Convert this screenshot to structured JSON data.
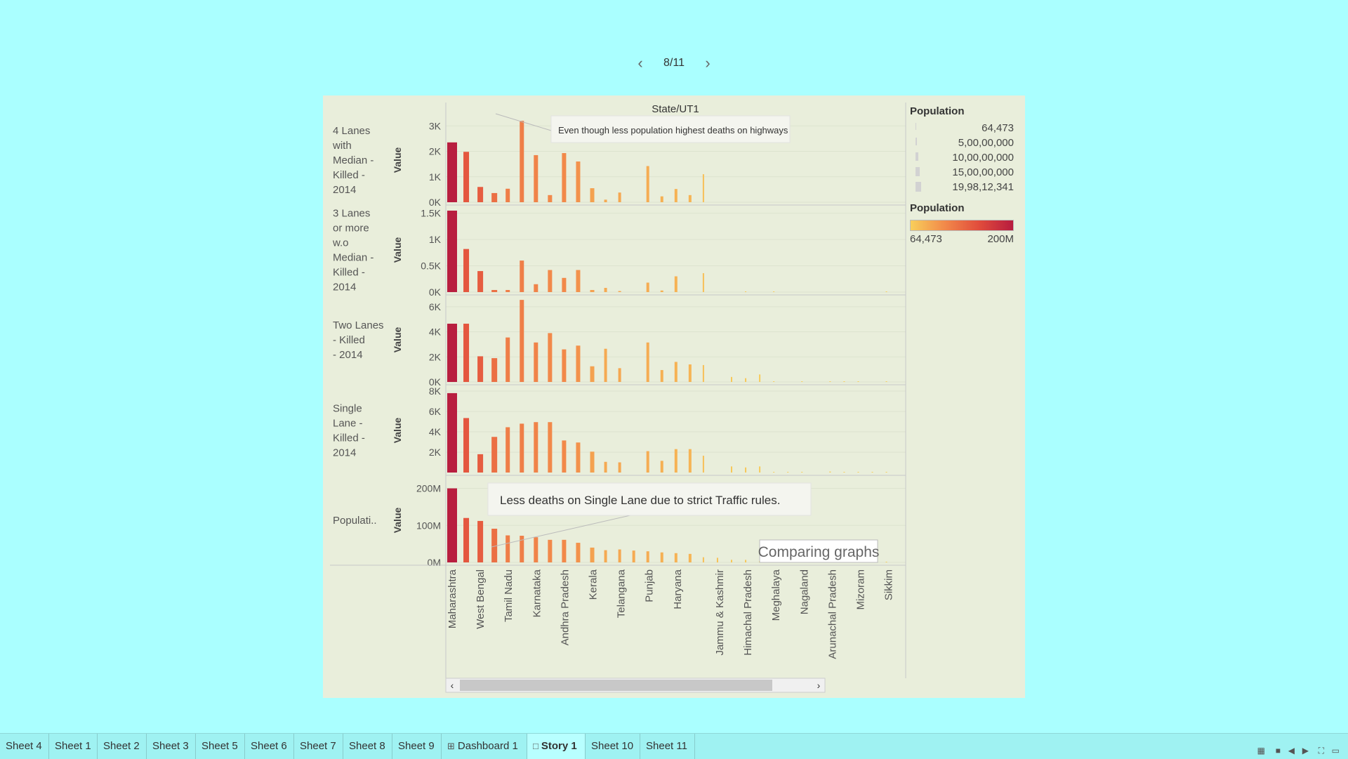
{
  "story_nav": {
    "position": "8/11",
    "prev_icon": "chevron-left-icon",
    "next_icon": "chevron-right-icon"
  },
  "chart_data": {
    "type": "bar",
    "title": "State/UT1",
    "categories": [
      "Maharashtra",
      "",
      "West Bengal",
      "",
      "Tamil Nadu",
      "",
      "Karnataka",
      "",
      "Andhra Pradesh",
      "",
      "Kerala",
      "",
      "Telangana",
      "",
      "Punjab",
      "",
      "Haryana",
      "",
      "",
      "Jammu & Kashmir",
      "",
      "Himachal Pradesh",
      "",
      "Meghalaya",
      "",
      "Nagaland",
      "",
      "Arunachal Pradesh",
      "",
      "Mizoram",
      "",
      "Sikkim"
    ],
    "series": [
      {
        "name": "4 Lanes with Median - Killed - 2014",
        "axis_label": "Value",
        "ticks": [
          "3K",
          "2K",
          "1K",
          "0K"
        ],
        "ylim": [
          0,
          3200
        ],
        "values": [
          2350,
          1980,
          600,
          360,
          530,
          3200,
          1850,
          280,
          1930,
          1600,
          550,
          100,
          380,
          0,
          1420,
          230,
          520,
          280,
          1100,
          0,
          0,
          0,
          0,
          0,
          0,
          0,
          0,
          0,
          0,
          0,
          0,
          0
        ]
      },
      {
        "name": "3 Lanes or more w.o Median - Killed - 2014",
        "axis_label": "Value",
        "ticks": [
          "1.5K",
          "1K",
          "0.5K",
          "0K"
        ],
        "ylim": [
          0,
          1550
        ],
        "values": [
          1550,
          820,
          400,
          40,
          40,
          600,
          150,
          420,
          270,
          420,
          40,
          80,
          20,
          0,
          180,
          30,
          300,
          0,
          360,
          0,
          0,
          10,
          0,
          5,
          0,
          0,
          0,
          0,
          0,
          0,
          0,
          5
        ]
      },
      {
        "name": "Two Lanes - Killed - 2014",
        "axis_label": "Value",
        "ticks": [
          "6K",
          "4K",
          "2K",
          "0K"
        ],
        "ylim": [
          0,
          6500
        ],
        "values": [
          4650,
          4650,
          2050,
          1900,
          3550,
          6550,
          3150,
          3900,
          2600,
          2900,
          1250,
          2650,
          1100,
          0,
          3150,
          950,
          1600,
          1400,
          1350,
          0,
          400,
          300,
          600,
          50,
          0,
          50,
          0,
          50,
          50,
          50,
          0,
          50
        ]
      },
      {
        "name": "Single Lane - Killed - 2014",
        "axis_label": "Value",
        "ticks": [
          "8K",
          "6K",
          "4K",
          "2K"
        ],
        "ylim": [
          0,
          8000
        ],
        "values": [
          7800,
          5350,
          1800,
          3500,
          4450,
          4800,
          4950,
          4950,
          3150,
          2950,
          2050,
          1050,
          1000,
          0,
          2100,
          1150,
          2300,
          2300,
          1650,
          0,
          600,
          500,
          600,
          50,
          50,
          50,
          0,
          100,
          50,
          50,
          50,
          50
        ]
      },
      {
        "name": "Population",
        "axis_label": "Value",
        "label_short": "Populati..",
        "ticks": [
          "200M",
          "100M",
          "0M"
        ],
        "ylim": [
          0,
          220000000
        ],
        "values": [
          200000000,
          120000000,
          112000000,
          91000000,
          73000000,
          72000000,
          68000000,
          61000000,
          61000000,
          53000000,
          40000000,
          33000000,
          35000000,
          32000000,
          30000000,
          27000000,
          25000000,
          23000000,
          14000000,
          12500000,
          7000000,
          6800000,
          3500000,
          3000000,
          2500000,
          2000000,
          1500000,
          1400000,
          1100000,
          1000000,
          700000,
          600000
        ]
      }
    ],
    "annotations": [
      {
        "text": "Even though less population highest deaths on highways"
      },
      {
        "text": "Less deaths on Single Lane due to strict Traffic rules."
      },
      {
        "text": "Comparing graphs"
      }
    ]
  },
  "legend": {
    "size_title": "Population",
    "size_items": [
      "64,473",
      "5,00,00,000",
      "10,00,00,000",
      "15,00,00,000",
      "19,98,12,341"
    ],
    "color_title": "Population",
    "color_min": "64,473",
    "color_max": "200M",
    "colors": {
      "low": "#f8cf5b",
      "mid": "#f2894a",
      "high": "#b71c3f"
    }
  },
  "tabs": [
    {
      "label": "Sheet 4"
    },
    {
      "label": "Sheet 1"
    },
    {
      "label": "Sheet 2"
    },
    {
      "label": "Sheet 3"
    },
    {
      "label": "Sheet 5"
    },
    {
      "label": "Sheet 6"
    },
    {
      "label": "Sheet 7"
    },
    {
      "label": "Sheet 8"
    },
    {
      "label": "Sheet 9"
    },
    {
      "label": "Dashboard 1",
      "icon": "dashboard-icon"
    },
    {
      "label": "Story 1",
      "icon": "story-icon",
      "active": true
    },
    {
      "label": "Sheet 10"
    },
    {
      "label": "Sheet 11"
    }
  ],
  "toolbar_icons": [
    "grid-view-icon",
    "filmstrip-icon",
    "prev-sheet-icon",
    "next-sheet-icon",
    "fullscreen-icon",
    "presentation-icon"
  ]
}
